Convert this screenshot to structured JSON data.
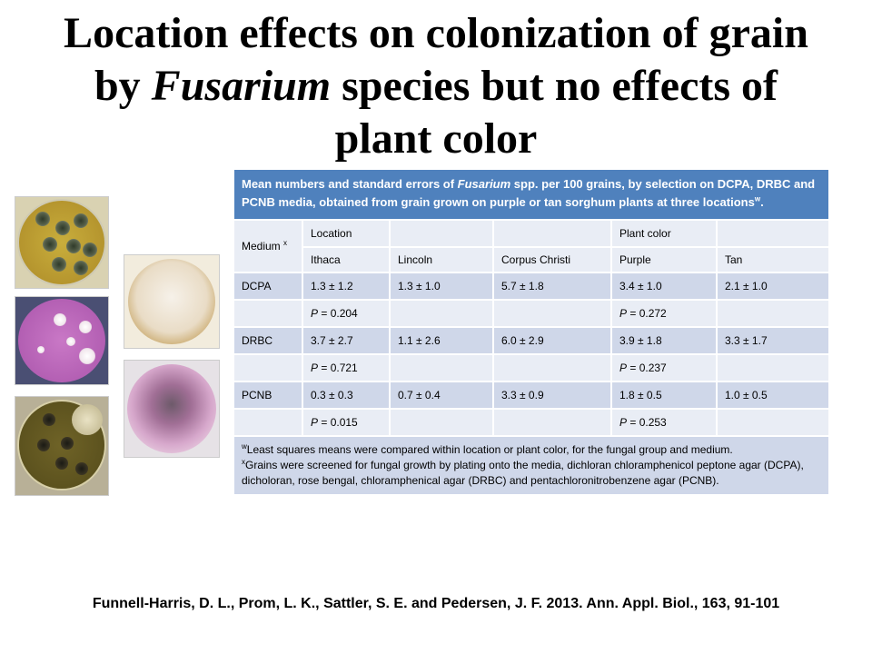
{
  "title": {
    "line1": "Location effects on colonization of grain",
    "line2_pre": "by ",
    "line2_italic": "Fusarium",
    "line2_post": " species but no effects of",
    "line3": "plant color"
  },
  "table": {
    "caption_pre": "Mean numbers and standard errors of ",
    "caption_italic": "Fusarium",
    "caption_post": " spp. per 100 grains, by selection on DCPA, DRBC and PCNB media, obtained from grain grown on purple or tan sorghum plants at three locations",
    "caption_sup": "w",
    "caption_end": ".",
    "medium_label": "Medium",
    "medium_sup": "x",
    "group_headers": [
      "Location",
      "",
      "",
      "Plant color",
      ""
    ],
    "columns": [
      "Ithaca",
      "Lincoln",
      "Corpus Christi",
      "Purple",
      "Tan"
    ],
    "rows": [
      {
        "medium": "DCPA",
        "values": [
          "1.3 ± 1.2",
          "1.3 ± 1.0",
          "5.7 ± 1.8",
          "3.4 ± 1.0",
          "2.1 ± 1.0"
        ],
        "p_location": "0.204",
        "p_color": "0.272"
      },
      {
        "medium": "DRBC",
        "values": [
          "3.7 ± 2.7",
          "1.1 ± 2.6",
          "6.0 ± 2.9",
          "3.9 ± 1.8",
          "3.3 ± 1.7"
        ],
        "p_location": "0.721",
        "p_color": "0.237"
      },
      {
        "medium": "PCNB",
        "values": [
          "0.3 ± 0.3",
          "0.7 ± 0.4",
          "3.3 ± 0.9",
          "1.8 ± 0.5",
          "1.0 ± 0.5"
        ],
        "p_location": "0.015",
        "p_color": "0.253"
      }
    ],
    "p_prefix": "P",
    "p_equals": " = ",
    "footnote_w_sup": "w",
    "footnote_w": "Least squares means were compared within location or plant color, for the fungal group and medium.",
    "footnote_x_sup": "x",
    "footnote_x": "Grains were screened for fungal growth by plating onto the media, dichloran chloramphenicol peptone agar (DCPA), dicholoran, rose bengal, chloramphenical agar (DRBC) and pentachloronitrobenzene agar (PCNB)."
  },
  "citation": "Funnell-Harris, D. L., Prom, L. K., Sattler, S. E. and Pedersen, J. F. 2013. Ann. Appl. Biol., 163, 91-101",
  "colors": {
    "header_blue": "#4f81bd",
    "row_dark": "#cfd7e9",
    "row_light": "#e9edf5"
  }
}
